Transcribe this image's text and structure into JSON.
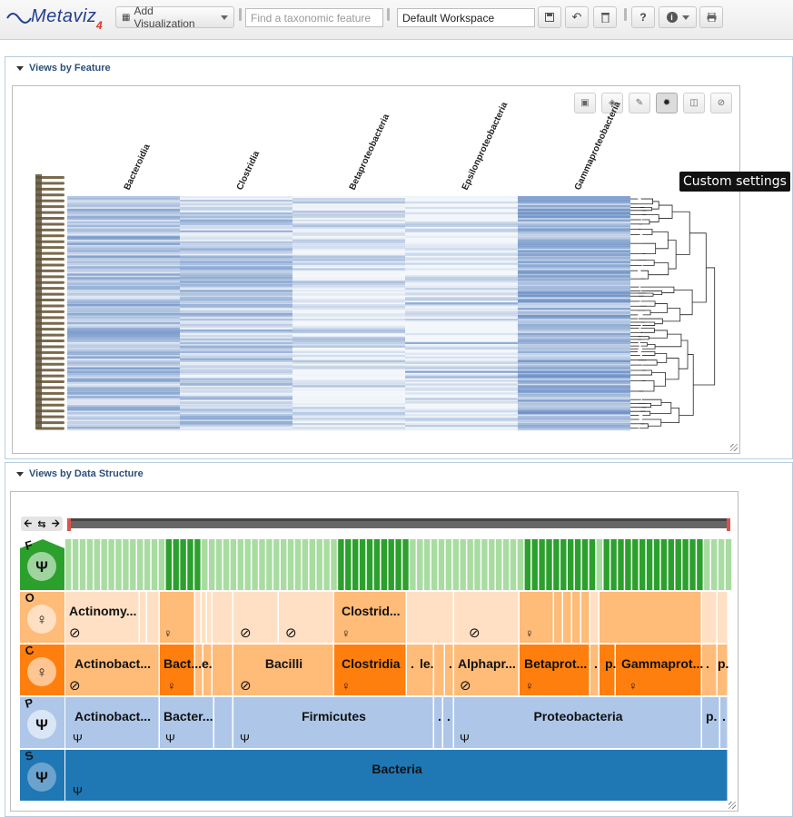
{
  "app": {
    "logo_text": "Metaviz",
    "logo_version": "4"
  },
  "toolbar": {
    "add_viz_label": "Add Visualization",
    "search_placeholder": "Find a taxonomic feature",
    "workspace_value": "Default Workspace",
    "icons": [
      "save-icon",
      "undo-icon",
      "trash-icon",
      "help-icon",
      "info-icon",
      "print-icon"
    ]
  },
  "panel_feature": {
    "title": "Views by Feature",
    "tooltip": "Custom settings",
    "heatmap": {
      "columns": [
        "Bacteroidia",
        "Clostridia",
        "Betaproteobacteria",
        "Epsilonproteobacteria",
        "Gammaproteobacteria"
      ],
      "base_color": "#3f6fb5"
    }
  },
  "panel_structure": {
    "title": "Views by Data Structure",
    "levels": [
      {
        "letter": "F",
        "color": "#2ca02c"
      },
      {
        "letter": "O",
        "color": "#ffbb78"
      },
      {
        "letter": "C",
        "color": "#ff7f0e"
      },
      {
        "letter": "P",
        "color": "#aec7e8"
      },
      {
        "letter": "S",
        "color": "#1f77b4"
      }
    ],
    "order_labels": [
      "Actinomy...",
      "Clostrid..."
    ],
    "class_labels": [
      "Actinobact...",
      "Bact...",
      "e.",
      "Bacilli",
      "Clostridia",
      ".",
      "le.",
      ".",
      "Alphapr...",
      "Betaprot...",
      ".",
      "p.",
      "Gammaprot...",
      ".",
      "p."
    ],
    "phylum_labels": [
      "Actinobact...",
      "Bacter...",
      "Firmicutes",
      ".",
      ".",
      "Proteobacteria",
      "p.",
      "."
    ],
    "superkingdom_label": "Bacteria"
  }
}
